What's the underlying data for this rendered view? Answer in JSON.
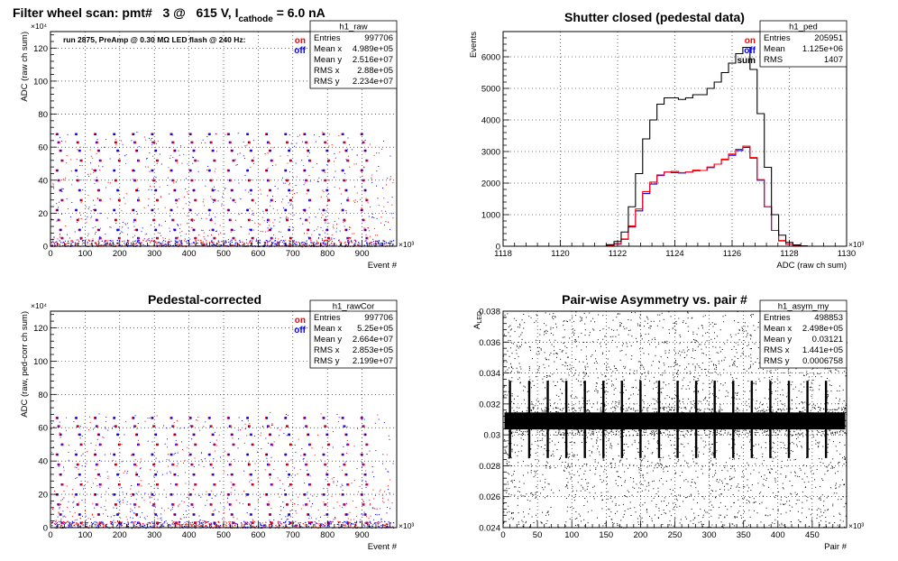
{
  "header": {
    "main": "Filter wheel scan: pmt#   3 @   615 V, I",
    "sub": "cathode",
    "tail": " = 6.0 nA"
  },
  "chart_data": [
    {
      "id": "raw",
      "type": "scatter",
      "title": "",
      "note": "run 2875, PreAmp @ 0.30 MΩ  LED flash @  240 Hz:",
      "xlabel": "Event #",
      "ylabel": "ADC (raw ch sum)",
      "x_multiplier": "×10³",
      "y_multiplier": "×10⁴",
      "xlim": [
        0,
        1000
      ],
      "ylim": [
        0,
        130
      ],
      "xticks": [
        0,
        100,
        200,
        300,
        400,
        500,
        600,
        700,
        800,
        900
      ],
      "yticks": [
        0,
        20,
        40,
        60,
        80,
        100,
        120
      ],
      "legend": [
        {
          "label": "on",
          "color": "#ff0000"
        },
        {
          "label": "off",
          "color": "#0000ff"
        }
      ],
      "stats_title": "h1_raw",
      "stats": [
        {
          "k": "Entries",
          "v": "997706"
        },
        {
          "k": "Mean x",
          "v": "4.989e+05"
        },
        {
          "k": "Mean y",
          "v": "2.516e+07"
        },
        {
          "k": "RMS x",
          "v": "2.88e+05"
        },
        {
          "k": "RMS y",
          "v": "2.234e+07"
        }
      ],
      "band_levels": [
        68,
        63,
        58,
        52,
        46,
        40,
        34,
        28,
        22,
        16,
        10,
        5
      ]
    },
    {
      "id": "ped",
      "type": "line",
      "title": "Shutter closed (pedestal data)",
      "xlabel": "ADC (raw ch sum)",
      "ylabel": "Events",
      "x_multiplier": "×10³",
      "xlim": [
        1118,
        1130
      ],
      "ylim": [
        0,
        6800
      ],
      "xticks": [
        1118,
        1120,
        1122,
        1124,
        1126,
        1128,
        1130
      ],
      "yticks": [
        0,
        1000,
        2000,
        3000,
        4000,
        5000,
        6000
      ],
      "legend": [
        {
          "label": "on",
          "color": "#ff0000"
        },
        {
          "label": "off",
          "color": "#0000ff"
        },
        {
          "label": "sum",
          "color": "#000000"
        }
      ],
      "stats_title": "h1_ped",
      "stats": [
        {
          "k": "Entries",
          "v": "205951"
        },
        {
          "k": "Mean",
          "v": "1.125e+06"
        },
        {
          "k": "RMS",
          "v": "1407"
        }
      ],
      "x": [
        1121.75,
        1122.0,
        1122.25,
        1122.5,
        1122.75,
        1123.0,
        1123.25,
        1123.5,
        1123.75,
        1124.0,
        1124.25,
        1124.5,
        1124.75,
        1125.0,
        1125.25,
        1125.5,
        1125.75,
        1126.0,
        1126.25,
        1126.5,
        1126.75,
        1127.0,
        1127.25,
        1127.5,
        1127.75,
        1128.0,
        1128.25,
        1128.5,
        1128.75
      ],
      "series": [
        {
          "name": "sum",
          "color": "#000000",
          "values": [
            50,
            150,
            450,
            1250,
            2300,
            3400,
            4000,
            4500,
            4700,
            4700,
            4650,
            4700,
            4800,
            4800,
            5000,
            5200,
            5500,
            5800,
            6100,
            6300,
            5600,
            4200,
            2500,
            1000,
            350,
            120,
            40,
            10,
            0
          ]
        },
        {
          "name": "on",
          "color": "#ff0000",
          "values": [
            25,
            80,
            230,
            640,
            1180,
            1730,
            2030,
            2260,
            2350,
            2370,
            2330,
            2350,
            2410,
            2400,
            2510,
            2600,
            2760,
            2920,
            3070,
            3170,
            2810,
            2110,
            1250,
            500,
            180,
            60,
            20,
            5,
            0
          ]
        },
        {
          "name": "off",
          "color": "#0000ff",
          "values": [
            25,
            70,
            220,
            610,
            1120,
            1670,
            1970,
            2240,
            2350,
            2330,
            2320,
            2350,
            2390,
            2400,
            2490,
            2600,
            2740,
            2880,
            3030,
            3130,
            2790,
            2090,
            1250,
            500,
            170,
            60,
            20,
            5,
            0
          ]
        }
      ]
    },
    {
      "id": "rawCor",
      "type": "scatter",
      "title": "Pedestal-corrected",
      "xlabel": "Event #",
      "ylabel": "ADC (raw, ped-corr ch sum)",
      "x_multiplier": "×10³",
      "y_multiplier": "×10⁴",
      "xlim": [
        0,
        1000
      ],
      "ylim": [
        0,
        130
      ],
      "xticks": [
        0,
        100,
        200,
        300,
        400,
        500,
        600,
        700,
        800,
        900
      ],
      "yticks": [
        0,
        20,
        40,
        60,
        80,
        100,
        120
      ],
      "legend": [
        {
          "label": "on",
          "color": "#ff0000"
        },
        {
          "label": "off",
          "color": "#0000ff"
        }
      ],
      "stats_title": "h1_rawCor",
      "stats": [
        {
          "k": "Entries",
          "v": "997706"
        },
        {
          "k": "Mean x",
          "v": "5.25e+05"
        },
        {
          "k": "Mean y",
          "v": "2.664e+07"
        },
        {
          "k": "RMS x",
          "v": "2.853e+05"
        },
        {
          "k": "RMS y",
          "v": "2.199e+07"
        }
      ],
      "band_levels": [
        66,
        61,
        56,
        50,
        44,
        38,
        32,
        26,
        20,
        14,
        8,
        3
      ]
    },
    {
      "id": "asym",
      "type": "scatter",
      "title": "Pair-wise Asymmetry vs. pair #",
      "xlabel": "Pair #",
      "ylabel": "A_LED",
      "ylabel_main": "A",
      "ylabel_sub": "LED",
      "x_multiplier": "×10³",
      "xlim": [
        0,
        500
      ],
      "ylim": [
        0.024,
        0.038
      ],
      "xticks": [
        0,
        50,
        100,
        150,
        200,
        250,
        300,
        350,
        400,
        450
      ],
      "yticks": [
        0.024,
        0.026,
        0.028,
        0.03,
        0.032,
        0.034,
        0.036,
        0.038
      ],
      "ytick_labels": [
        "0.024",
        "0.026",
        "0.028",
        "0.03",
        "0.032",
        "0.034",
        "0.036",
        "0.038"
      ],
      "stats_title": "h1_asym_my",
      "stats": [
        {
          "k": "Entries",
          "v": "498853"
        },
        {
          "k": "Mean x",
          "v": "2.498e+05"
        },
        {
          "k": "Mean y",
          "v": "0.03121"
        },
        {
          "k": "RMS x",
          "v": "1.441e+05"
        },
        {
          "k": "RMS y",
          "v": "0.0006758"
        }
      ],
      "band_center": 0.0309,
      "band_halfwidth": 0.00055,
      "spike_x": [
        10,
        38,
        65,
        92,
        119,
        146,
        173,
        200,
        227,
        254,
        281,
        308,
        335,
        362,
        389,
        416,
        443,
        470
      ]
    }
  ]
}
